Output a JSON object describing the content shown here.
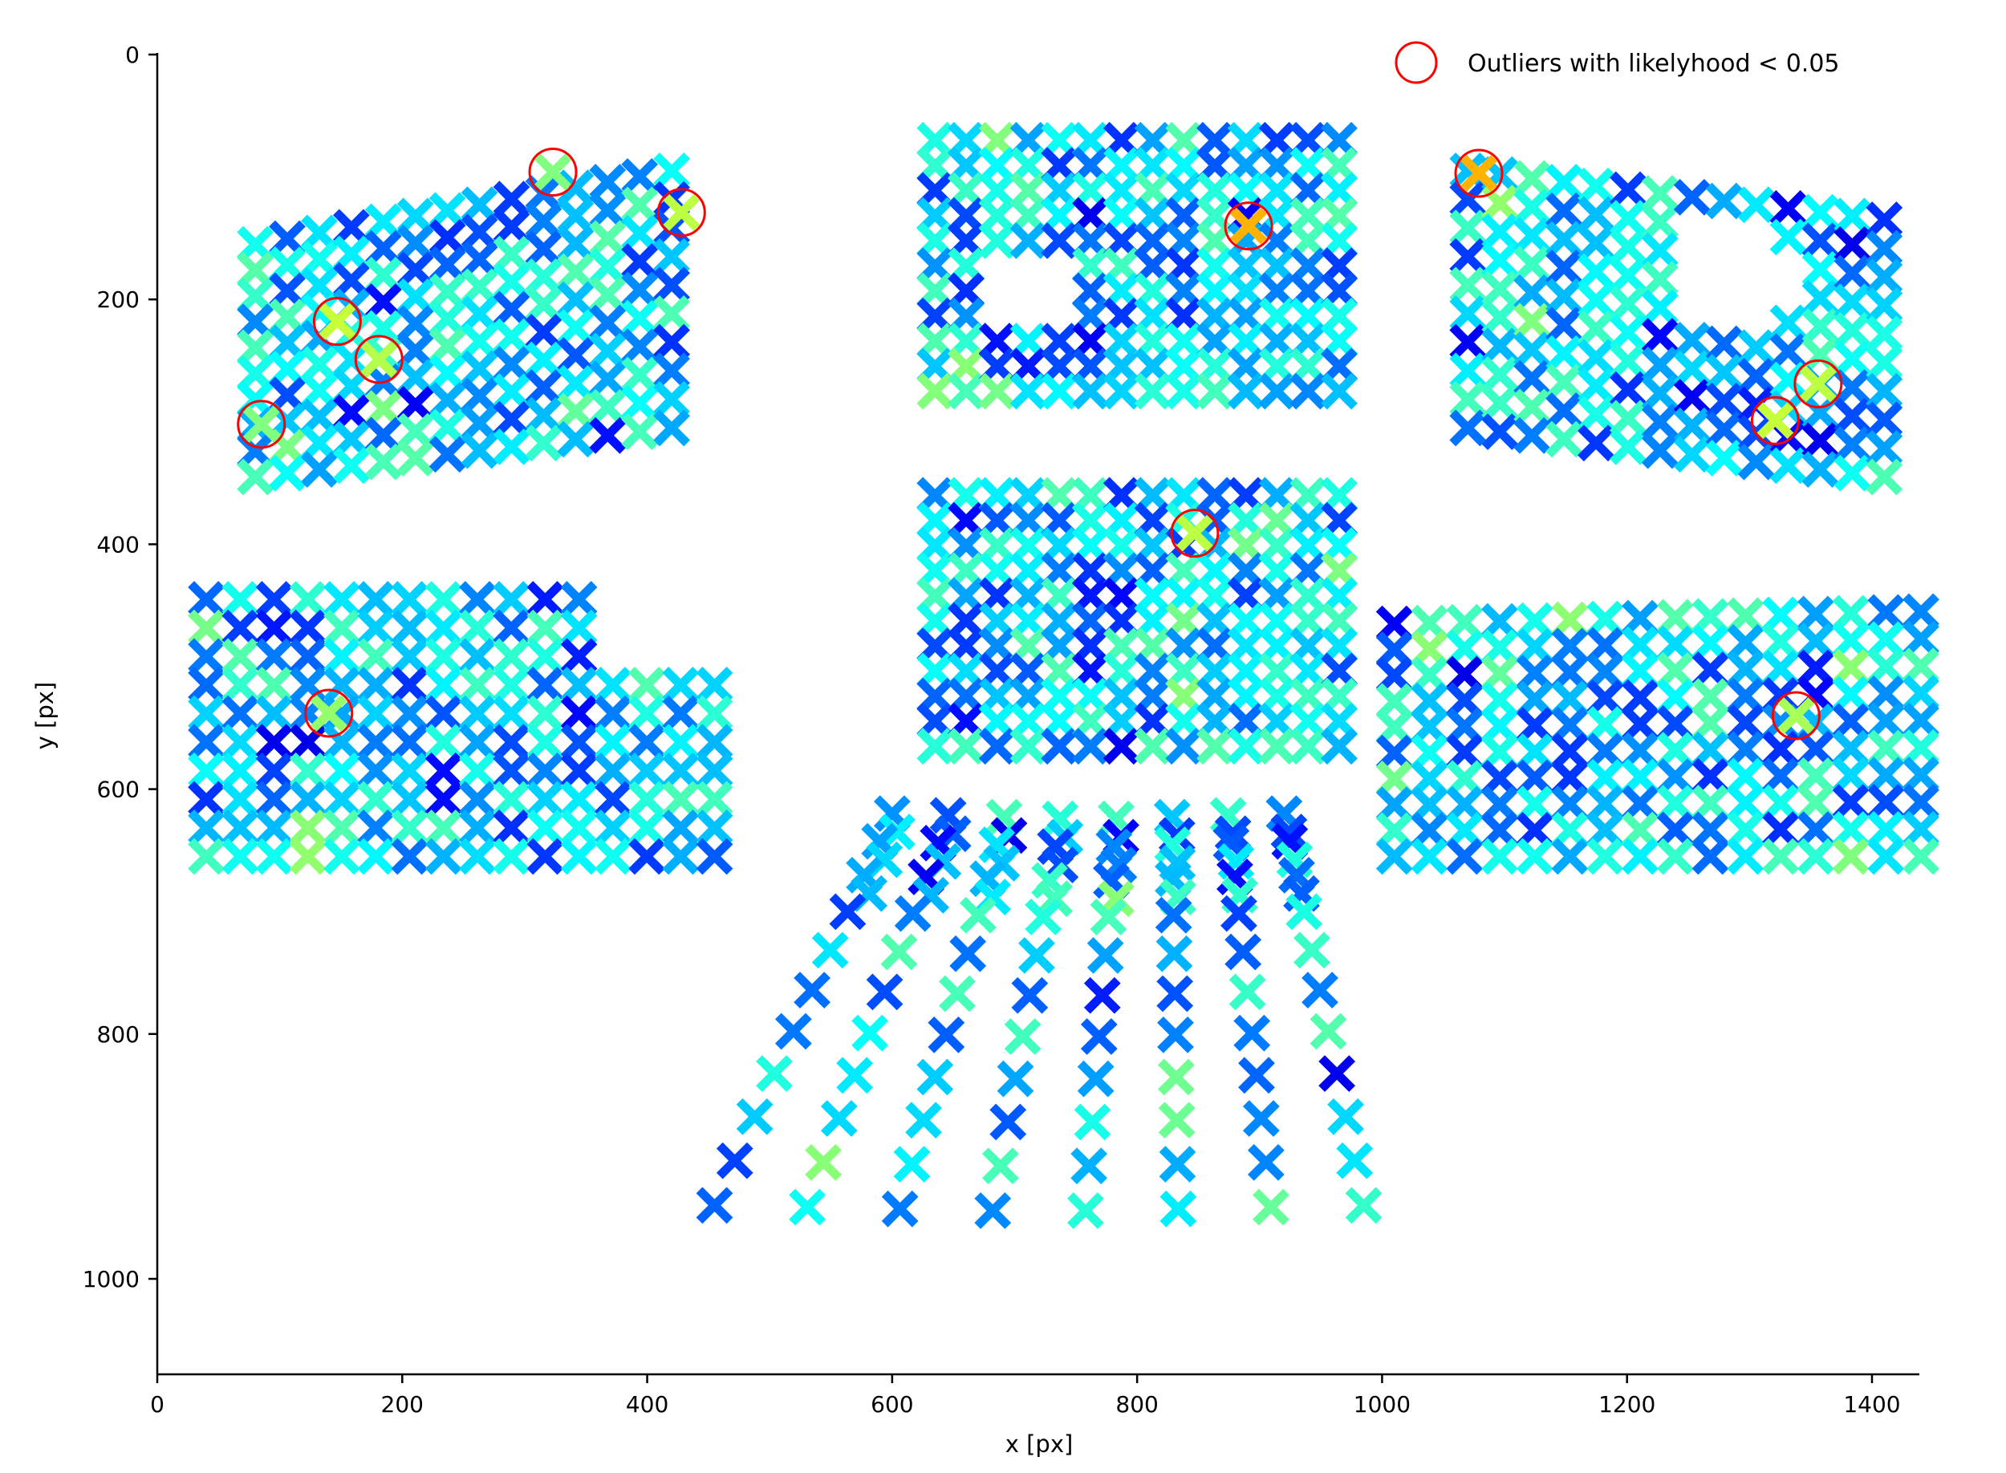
{
  "chart_data": {
    "type": "scatter",
    "title": "",
    "xlabel": "x [px]",
    "ylabel": "y [px]",
    "xlim": [
      0,
      1440
    ],
    "ylim": [
      1080,
      0
    ],
    "y_inverted": true,
    "grid": false,
    "xticks": [
      0,
      200,
      400,
      600,
      800,
      1000,
      1200,
      1400
    ],
    "yticks": [
      0,
      200,
      400,
      600,
      800,
      1000
    ],
    "marker": "x",
    "colormap": "jet",
    "color_range": [
      0.0,
      0.72
    ],
    "legend": {
      "label": "Outliers with likelyhood < 0.05",
      "marker": "open-circle",
      "color": "#ff0000",
      "placement": "top-right"
    },
    "panels": [
      {
        "name": "top-left",
        "x_range": [
          80,
          420
        ],
        "y_top_left": 155,
        "y_top_right": 95,
        "y_bottom_left": 345,
        "y_bottom_right": 305,
        "rows": 10,
        "cols": 14,
        "cutout": "none"
      },
      {
        "name": "top-center",
        "x_range": [
          635,
          965
        ],
        "y_top_left": 70,
        "y_top_right": 70,
        "y_bottom_left": 275,
        "y_bottom_right": 275,
        "rows": 11,
        "cols": 14,
        "cutout": "ellipse",
        "cutout_center": [
          715,
          190
        ],
        "cutout_radius": [
          45,
          38
        ]
      },
      {
        "name": "top-right",
        "x_range": [
          1070,
          1410
        ],
        "y_top_left": 95,
        "y_top_right": 135,
        "y_bottom_left": 305,
        "y_bottom_right": 345,
        "rows": 10,
        "cols": 14,
        "cutout": "ellipse",
        "cutout_center": [
          1285,
          175
        ],
        "cutout_radius": [
          55,
          45
        ]
      },
      {
        "name": "middle-left",
        "x_range": [
          40,
          455
        ],
        "y_top_left": 445,
        "y_top_right": 445,
        "y_bottom_left": 655,
        "y_bottom_right": 655,
        "rows": 10,
        "cols": 16,
        "cutout": "rect",
        "cutout_rect": [
          370,
          420,
          460,
          510
        ]
      },
      {
        "name": "center",
        "x_range": [
          635,
          965
        ],
        "y_top_left": 360,
        "y_top_right": 360,
        "y_bottom_left": 565,
        "y_bottom_right": 565,
        "rows": 11,
        "cols": 14,
        "cutout": "none"
      },
      {
        "name": "middle-right",
        "x_range": [
          1010,
          1440
        ],
        "y_top_left": 465,
        "y_top_right": 455,
        "y_bottom_left": 655,
        "y_bottom_right": 655,
        "rows": 10,
        "cols": 16,
        "cutout": "none"
      },
      {
        "name": "bottom-fan",
        "type": "fan",
        "top_x": [
          600,
          920
        ],
        "top_y": 625,
        "bottom_x": [
          455,
          985
        ],
        "bottom_y": 945,
        "rays": 8,
        "rows": 11
      }
    ],
    "outliers": [
      {
        "x": 85,
        "y": 302,
        "c": 0.5
      },
      {
        "x": 147,
        "y": 218,
        "c": 0.57
      },
      {
        "x": 181,
        "y": 249,
        "c": 0.55
      },
      {
        "x": 323,
        "y": 96,
        "c": 0.5
      },
      {
        "x": 428,
        "y": 129,
        "c": 0.56
      },
      {
        "x": 140,
        "y": 538,
        "c": 0.52
      },
      {
        "x": 891,
        "y": 140,
        "c": 0.7
      },
      {
        "x": 847,
        "y": 391,
        "c": 0.56
      },
      {
        "x": 1079,
        "y": 97,
        "c": 0.7
      },
      {
        "x": 1321,
        "y": 299,
        "c": 0.57
      },
      {
        "x": 1356,
        "y": 269,
        "c": 0.56
      },
      {
        "x": 1338,
        "y": 540,
        "c": 0.54
      }
    ]
  }
}
